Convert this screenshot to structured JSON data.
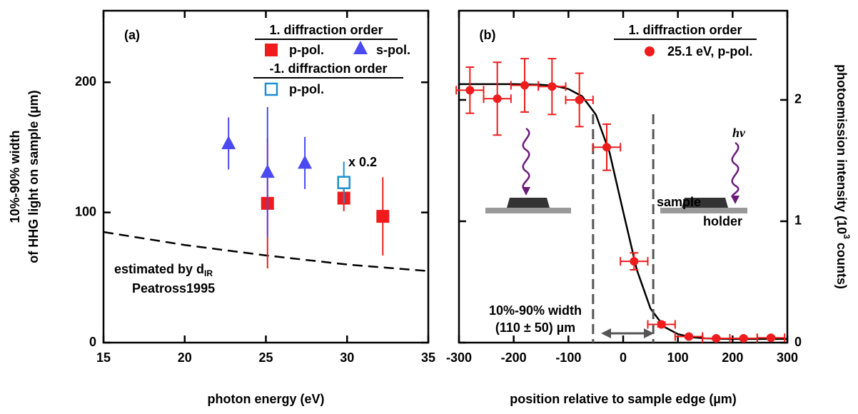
{
  "chart_data": [
    {
      "type": "scatter",
      "title": "(a)",
      "xlabel": "photon energy (eV)",
      "ylabel": [
        "10%-90% width",
        "of HHG light on sample (µm)"
      ],
      "xlim": [
        15,
        35
      ],
      "ylim": [
        0,
        255
      ],
      "xticks": [
        15,
        20,
        25,
        30,
        35
      ],
      "yticks": [
        0,
        100,
        200
      ],
      "y_axis_side": "left",
      "legend_headings": [
        "1. diffraction order",
        "-1. diffraction order"
      ],
      "series": [
        {
          "name": "p-pol.",
          "color": "#ee1c1c",
          "marker": "square",
          "x": [
            25.1,
            29.8,
            32.2
          ],
          "values": [
            107,
            111,
            97
          ],
          "errors": [
            50,
            10,
            30
          ]
        },
        {
          "name": "s-pol.",
          "color": "#4a4af0",
          "marker": "triangle",
          "x": [
            22.7,
            25.1,
            27.4
          ],
          "values": [
            153,
            131,
            138
          ],
          "errors": [
            20,
            50,
            20
          ]
        },
        {
          "name": "p-pol.",
          "color": "#1f8fd0",
          "marker": "open-square",
          "x": [
            29.8
          ],
          "values": [
            123
          ],
          "errors": [
            16
          ]
        }
      ],
      "line": {
        "name": "estimated by d",
        "name_subscript": "IR",
        "color": "#000000",
        "dashed": true,
        "x": [
          15,
          20,
          25,
          30,
          35
        ],
        "values": [
          85,
          75,
          67,
          60,
          55
        ]
      },
      "annotations": [
        "x 0.2",
        "Peatross1995"
      ]
    },
    {
      "type": "scatter",
      "title": "(b)",
      "xlabel": "position relative to sample edge (µm)",
      "ylabel": [
        "photoemission intensity (10",
        "3",
        " counts)"
      ],
      "xlim": [
        -300,
        300
      ],
      "ylim": [
        0,
        2.735
      ],
      "xticks": [
        -300,
        -200,
        -100,
        0,
        100,
        200,
        300
      ],
      "yticks": [
        0,
        1,
        2
      ],
      "y_axis_side": "right",
      "legend_headings": [
        "1. diffraction order"
      ],
      "series": [
        {
          "name": "25.1 eV, p-pol.",
          "color": "#ee1c1c",
          "marker": "circle",
          "x": [
            -280,
            -230,
            -180,
            -130,
            -80,
            -30,
            20,
            70,
            120,
            170,
            220,
            270
          ],
          "values": [
            2.08,
            2.01,
            2.12,
            2.11,
            2.0,
            1.61,
            0.67,
            0.15,
            0.05,
            0.035,
            0.035,
            0.04
          ],
          "errors": [
            0.19,
            0.3,
            0.22,
            0.23,
            0.22,
            0.19,
            0.07,
            0.02,
            0.01,
            0.01,
            0.01,
            0.01
          ],
          "x_errors": [
            25,
            25,
            25,
            25,
            25,
            25,
            25,
            25,
            25,
            25,
            25,
            25
          ]
        }
      ],
      "line": {
        "color": "#000000",
        "dashed": false,
        "x": [
          -300,
          -250,
          -200,
          -150,
          -125,
          -100,
          -75,
          -50,
          -25,
          0,
          25,
          50,
          75,
          100,
          125,
          150,
          200,
          300
        ],
        "values": [
          2.13,
          2.13,
          2.13,
          2.125,
          2.116,
          2.09,
          2.03,
          1.88,
          1.57,
          1.08,
          0.6,
          0.28,
          0.13,
          0.07,
          0.044,
          0.035,
          0.03,
          0.03
        ]
      },
      "width_markers": [
        -55,
        55
      ],
      "annotations": [
        "10%-90% width",
        "(110 ± 50) µm",
        "sample",
        "holder",
        "hν"
      ]
    }
  ]
}
